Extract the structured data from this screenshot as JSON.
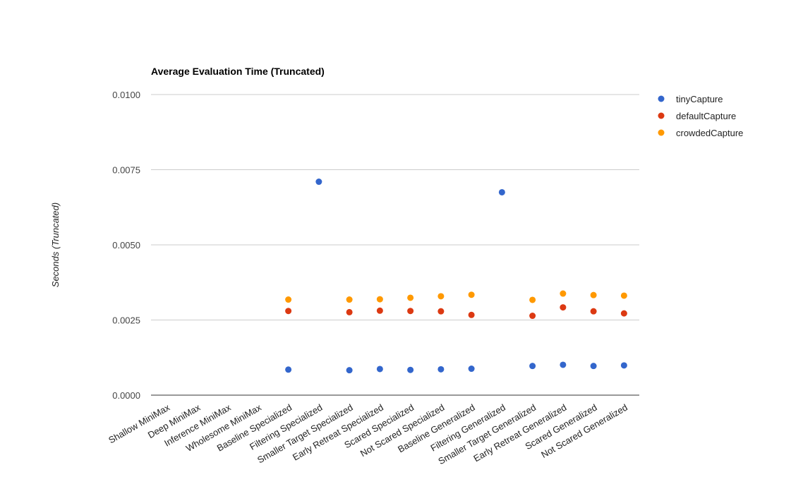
{
  "chart_data": {
    "type": "scatter",
    "title": "Average Evaluation Time (Truncated)",
    "xlabel": "",
    "ylabel": "Seconds (Truncated)",
    "ylim": [
      0,
      0.01
    ],
    "yticks": [
      "0.0000",
      "0.0025",
      "0.0050",
      "0.0075",
      "0.0100"
    ],
    "ytick_values": [
      0,
      0.0025,
      0.005,
      0.0075,
      0.01
    ],
    "grid": true,
    "legend_position": "top-right",
    "categories": [
      "Shallow MiniMax",
      "Deep MiniMax",
      "Inference MiniMax",
      "Wholesome MiniMax",
      "Baseline Specialized",
      "Filtering Specialized",
      "Smaller Target Specialized",
      "Early Retreat Specialized",
      "Scared Specialized",
      "Not Scared Specialized",
      "Baseline Generalized",
      "Filtering Generalized",
      "Smaller Target Generalized",
      "Early Retreat Generalized",
      "Scared Generalized",
      "Not Scared Generalized"
    ],
    "series": [
      {
        "name": "tinyCapture",
        "color": "#3366cc",
        "values": [
          null,
          null,
          null,
          null,
          0.00085,
          0.0071,
          0.00083,
          0.00087,
          0.00084,
          0.00086,
          0.00088,
          0.00675,
          0.00097,
          0.00101,
          0.00097,
          0.00099
        ]
      },
      {
        "name": "defaultCapture",
        "color": "#dc3912",
        "values": [
          null,
          null,
          null,
          null,
          0.0028,
          null,
          0.00276,
          0.00281,
          0.0028,
          0.00279,
          0.00267,
          null,
          0.00264,
          0.00292,
          0.00279,
          0.00272
        ]
      },
      {
        "name": "crowdedCapture",
        "color": "#ff9900",
        "values": [
          null,
          null,
          null,
          null,
          0.00318,
          null,
          0.00318,
          0.00319,
          0.00324,
          0.00329,
          0.00334,
          null,
          0.00317,
          0.00338,
          0.00333,
          0.00331
        ]
      }
    ]
  }
}
